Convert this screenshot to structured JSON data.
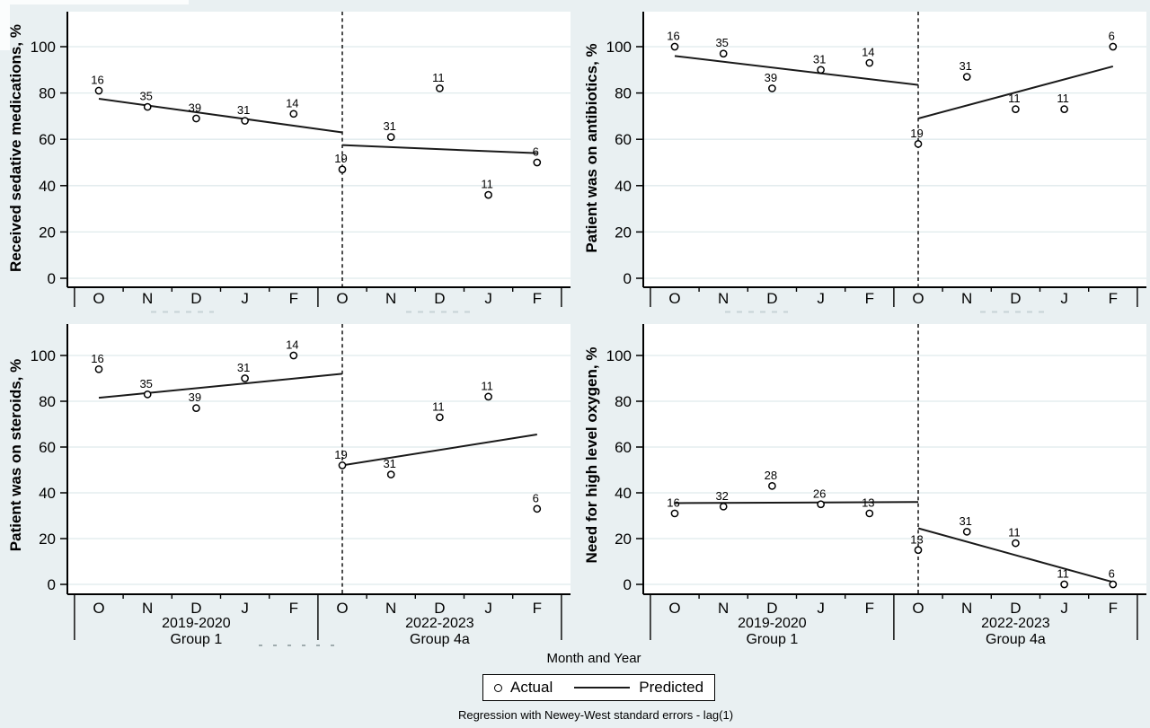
{
  "figure": {
    "x_axis_title": "Month and Year",
    "footnote": "Regression with Newey-West standard errors - lag(1)",
    "legend": {
      "actual_label": "Actual",
      "predicted_label": "Predicted"
    },
    "y_ticks": [
      0,
      20,
      40,
      60,
      80,
      100
    ],
    "months": [
      "O",
      "N",
      "D",
      "J",
      "F",
      "O",
      "N",
      "D",
      "J",
      "F"
    ],
    "groups": [
      {
        "period": "2019-2020",
        "name": "Group 1"
      },
      {
        "period": "2022-2023",
        "name": "Group 4a"
      }
    ],
    "colors": {
      "background": "#e9f0f2",
      "plot_background": "#ffffff",
      "grid": "#dfeaec",
      "axis": "#000000",
      "marker_stroke": "#000000",
      "marker_fill": "#ffffff",
      "point_label": "#2a5783",
      "predicted_line": "#1a1a1a",
      "dashed_line": "#000000"
    }
  },
  "chart_data": [
    {
      "type": "scatter",
      "title": "Received sedative medications, %",
      "ylabel": "Received sedative medications, %",
      "ylim": [
        0,
        110
      ],
      "grid": true,
      "categories": [
        "O",
        "N",
        "D",
        "J",
        "F",
        "O",
        "N",
        "D",
        "J",
        "F"
      ],
      "x_groups": [
        "2019-2020 Group 1",
        "2022-2023 Group 4a"
      ],
      "intervention_at_category_index": 5,
      "actual": [
        81,
        74,
        69,
        68,
        71,
        47,
        61,
        82,
        36,
        50
      ],
      "point_labels": [
        16,
        35,
        39,
        31,
        14,
        19,
        31,
        11,
        11,
        6
      ],
      "predicted": [
        [
          77.5,
          63
        ],
        [
          57.5,
          54
        ]
      ]
    },
    {
      "type": "scatter",
      "title": "Patient was on antibiotics, %",
      "ylabel": "Patient was on antibiotics, %",
      "ylim": [
        0,
        110
      ],
      "grid": true,
      "categories": [
        "O",
        "N",
        "D",
        "J",
        "F",
        "O",
        "N",
        "D",
        "J",
        "F"
      ],
      "x_groups": [
        "2019-2020 Group 1",
        "2022-2023 Group 4a"
      ],
      "intervention_at_category_index": 5,
      "actual": [
        100,
        97,
        82,
        90,
        93,
        58,
        87,
        73,
        73,
        100
      ],
      "point_labels": [
        16,
        35,
        39,
        31,
        14,
        19,
        31,
        11,
        11,
        6
      ],
      "predicted": [
        [
          96,
          83.5
        ],
        [
          69,
          91.5
        ]
      ]
    },
    {
      "type": "scatter",
      "title": "Patient was on steroids, %",
      "ylabel": "Patient was on steroids, %",
      "ylim": [
        0,
        110
      ],
      "grid": true,
      "categories": [
        "O",
        "N",
        "D",
        "J",
        "F",
        "O",
        "N",
        "D",
        "J",
        "F"
      ],
      "x_groups": [
        "2019-2020 Group 1",
        "2022-2023 Group 4a"
      ],
      "intervention_at_category_index": 5,
      "actual": [
        94,
        83,
        77,
        90,
        100,
        52,
        48,
        73,
        82,
        33
      ],
      "point_labels": [
        16,
        35,
        39,
        31,
        14,
        19,
        31,
        11,
        11,
        6
      ],
      "predicted": [
        [
          81.5,
          92
        ],
        [
          52,
          65.5
        ]
      ]
    },
    {
      "type": "scatter",
      "title": "Need for high level oxygen, %",
      "ylabel": "Need for high level oxygen, %",
      "ylim": [
        0,
        110
      ],
      "grid": true,
      "categories": [
        "O",
        "N",
        "D",
        "J",
        "F",
        "O",
        "N",
        "D",
        "J",
        "F"
      ],
      "x_groups": [
        "2019-2020 Group 1",
        "2022-2023 Group 4a"
      ],
      "intervention_at_category_index": 5,
      "actual": [
        31,
        34,
        43,
        35,
        31,
        15,
        23,
        18,
        0,
        0
      ],
      "point_labels": [
        16,
        32,
        28,
        26,
        13,
        13,
        31,
        11,
        11,
        6
      ],
      "predicted": [
        [
          35.5,
          36
        ],
        [
          24.5,
          1
        ]
      ]
    }
  ]
}
